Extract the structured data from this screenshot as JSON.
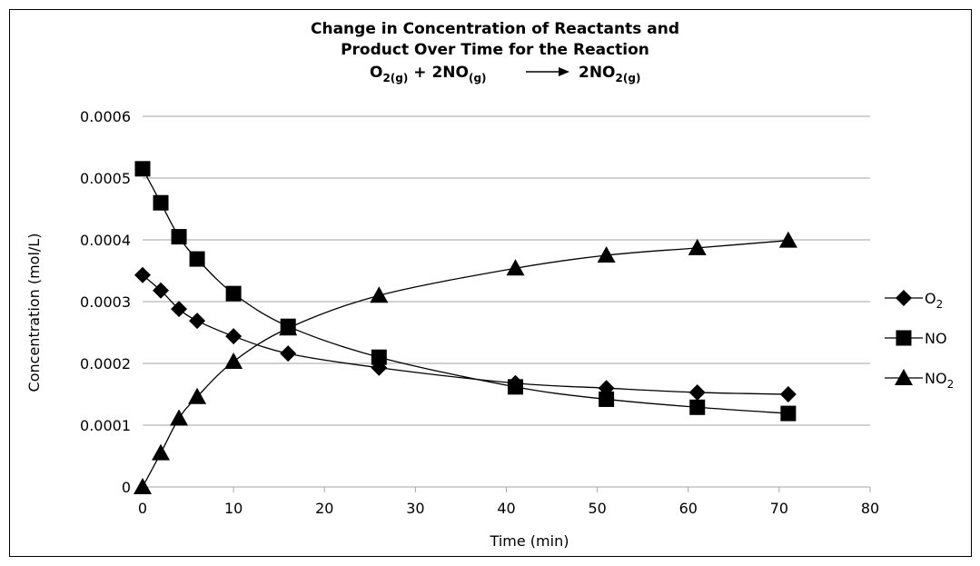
{
  "chart_data": {
    "type": "scatter",
    "title_lines": [
      "Change in Concentration of Reactants and",
      "Product Over Time for the Reaction"
    ],
    "equation": {
      "left_1": "O",
      "left_1_sub": "2(g)",
      "plus": " + 2NO",
      "left_2_sub": "(g)",
      "right": "2NO",
      "right_sub": "2(g)"
    },
    "xlabel": "Time (min)",
    "ylabel": "Concentration (mol/L)",
    "xlim": [
      0,
      80
    ],
    "ylim": [
      0,
      0.0006
    ],
    "x_ticks": [
      "0",
      "10",
      "20",
      "30",
      "40",
      "50",
      "60",
      "70",
      "80"
    ],
    "y_ticks": [
      "0",
      "0.0001",
      "0.0002",
      "0.0003",
      "0.0004",
      "0.0005",
      "0.0006"
    ],
    "grid": "horizontal",
    "legend_position": "right",
    "series": [
      {
        "name": "O",
        "name_sub": "2",
        "marker": "diamond",
        "x": [
          0,
          2,
          4,
          6,
          10,
          16,
          26,
          41,
          51,
          61,
          71
        ],
        "y": [
          0.000343,
          0.000318,
          0.000288,
          0.000269,
          0.000244,
          0.000216,
          0.000193,
          0.000168,
          0.00016,
          0.000153,
          0.00015
        ]
      },
      {
        "name": "NO",
        "name_sub": "",
        "marker": "square",
        "x": [
          0,
          2,
          4,
          6,
          10,
          16,
          26,
          41,
          51,
          61,
          71
        ],
        "y": [
          0.000515,
          0.00046,
          0.000405,
          0.000369,
          0.000313,
          0.00026,
          0.00021,
          0.000162,
          0.000142,
          0.000129,
          0.000119
        ]
      },
      {
        "name": "NO",
        "name_sub": "2",
        "marker": "triangle",
        "x": [
          0,
          2,
          4,
          6,
          10,
          16,
          26,
          41,
          51,
          61,
          71
        ],
        "y": [
          0,
          5.5e-05,
          0.000111,
          0.000146,
          0.000203,
          0.000257,
          0.00031,
          0.000354,
          0.000375,
          0.000387,
          0.000399
        ]
      }
    ]
  }
}
